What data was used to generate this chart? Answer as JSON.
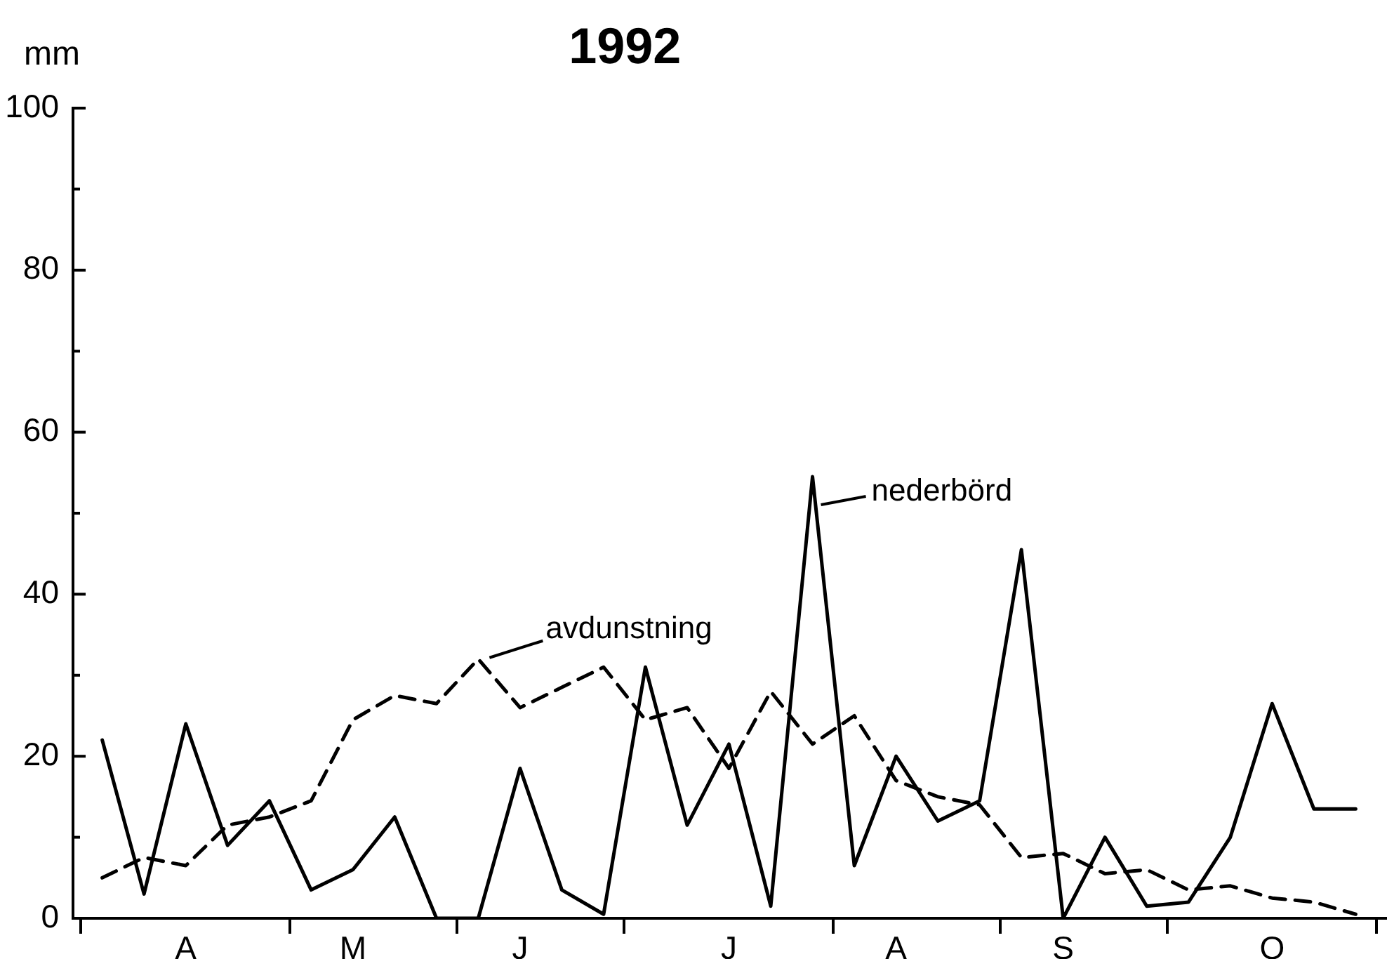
{
  "chart_data": {
    "type": "line",
    "title": "1992",
    "ylabel": "mm",
    "categories": [
      null,
      null,
      "A",
      null,
      null,
      null,
      "M",
      null,
      null,
      null,
      "J",
      null,
      null,
      null,
      null,
      "J",
      null,
      null,
      null,
      "A",
      null,
      null,
      null,
      "S",
      null,
      null,
      null,
      null,
      "O",
      null,
      null
    ],
    "series": [
      {
        "name": "nederbörd",
        "color": "#000000",
        "line_style": "solid",
        "values": [
          22,
          3,
          24,
          9,
          14.5,
          3.5,
          6,
          12.5,
          0,
          0,
          18.5,
          3.5,
          0.5,
          31,
          11.5,
          21.5,
          1.5,
          54.5,
          6.5,
          20,
          12,
          14.5,
          45.5,
          0,
          10,
          1.5,
          2,
          10,
          26.5,
          13.5,
          13.5
        ]
      },
      {
        "name": "avdunstning",
        "color": "#000000",
        "line_style": "dashed",
        "values": [
          5,
          7.5,
          6.5,
          11.5,
          12.5,
          14.5,
          24.5,
          27.5,
          26.5,
          32,
          26,
          28.5,
          31,
          24.5,
          26,
          18.5,
          28,
          21.5,
          25,
          17,
          15,
          14,
          7.5,
          8,
          5.5,
          6,
          3.5,
          4,
          2.5,
          2,
          0.5
        ]
      }
    ],
    "ylim": [
      0,
      100
    ],
    "yticks": [
      0,
      {
        "value": 10,
        "label": null
      },
      20,
      {
        "value": 30,
        "label": null
      },
      40,
      {
        "value": 50,
        "label": null
      },
      60,
      {
        "value": 70,
        "label": null
      },
      80,
      {
        "value": 90,
        "label": null
      },
      100
    ]
  }
}
